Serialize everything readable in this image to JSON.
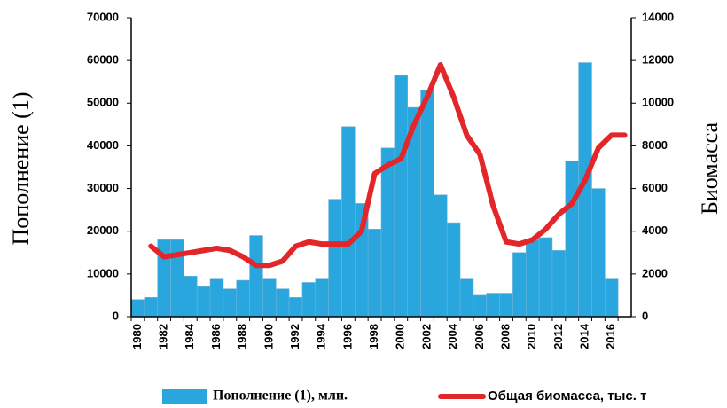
{
  "chart_data": {
    "type": "bar",
    "categories": [
      "1980",
      null,
      "1982",
      null,
      "1984",
      null,
      "1986",
      null,
      "1988",
      null,
      "1990",
      null,
      "1992",
      null,
      "1994",
      null,
      "1996",
      null,
      "1998",
      null,
      "2000",
      null,
      "2002",
      null,
      "2004",
      null,
      "2006",
      null,
      "2008",
      null,
      "2010",
      null,
      "2012",
      null,
      "2014",
      null,
      "2016",
      null
    ],
    "series": [
      {
        "name": "Пополнение (1), млн.",
        "type": "bar",
        "color": "#29a6de",
        "values": [
          4000,
          4500,
          18000,
          18000,
          9500,
          7000,
          9000,
          6500,
          8500,
          19000,
          9000,
          6500,
          4500,
          8000,
          9000,
          27500,
          44500,
          26500,
          20500,
          39500,
          56500,
          49000,
          53000,
          28500,
          22000,
          9000,
          5000,
          5500,
          5500,
          15000,
          18000,
          18500,
          15500,
          36500,
          59500,
          30000,
          9000,
          null
        ]
      },
      {
        "name": "Общая биомасса, тыс. т",
        "type": "line",
        "axis": "y2",
        "color": "#e3262a",
        "values": [
          null,
          3300,
          2800,
          2900,
          3000,
          3100,
          3200,
          3100,
          2800,
          2400,
          2400,
          2600,
          3300,
          3500,
          3400,
          3400,
          3400,
          4000,
          6700,
          7100,
          7400,
          9000,
          10300,
          11800,
          10300,
          8500,
          7600,
          5200,
          3500,
          3400,
          3600,
          4100,
          4800,
          5300,
          6400,
          7900,
          8500,
          8500
        ]
      }
    ],
    "y_label": "Пополнение (1)",
    "y2_label": "Биомасса",
    "ylim": [
      0,
      70000
    ],
    "yticks": [
      0,
      10000,
      20000,
      30000,
      40000,
      50000,
      60000,
      70000
    ],
    "y2lim": [
      0,
      14000
    ],
    "y2ticks": [
      0,
      2000,
      4000,
      6000,
      8000,
      10000,
      12000,
      14000
    ],
    "grid": false,
    "legend": "bottom"
  }
}
